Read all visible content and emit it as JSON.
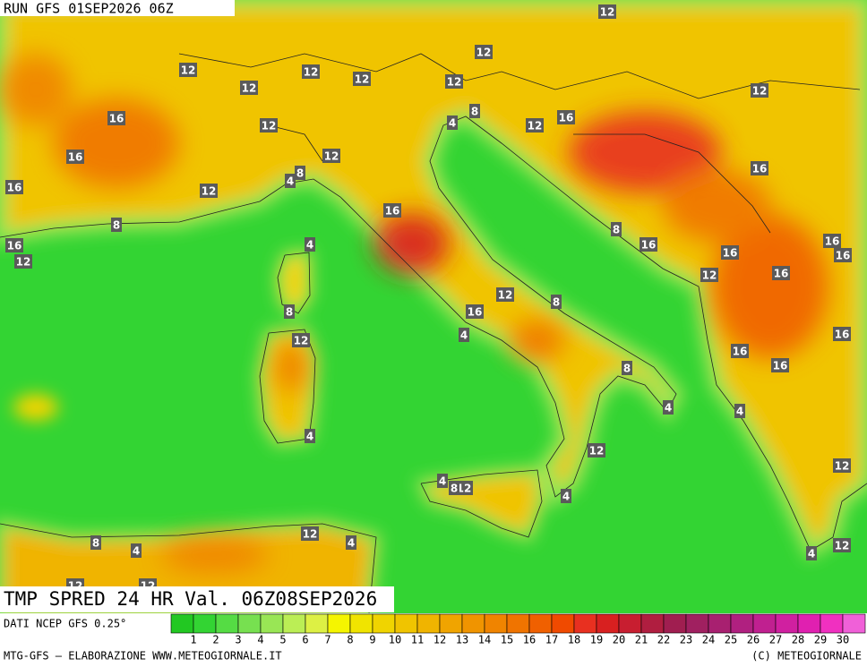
{
  "header": {
    "run": "RUN GFS 01SEP2026 06Z"
  },
  "title": "TMP SPRED 24 HR Val. 06Z08SEP2026",
  "source": "DATI NCEP GFS 0.25°",
  "footer": {
    "left": "MTG-GFS — ELABORAZIONE WWW.METEOGIORNALE.IT",
    "right": "(C) METEOGIORNALE"
  },
  "legend": {
    "levels": [
      1,
      2,
      3,
      4,
      5,
      6,
      7,
      8,
      9,
      10,
      11,
      12,
      13,
      14,
      15,
      16,
      17,
      18,
      19,
      20,
      21,
      22,
      23,
      24,
      25,
      26,
      27,
      28,
      29,
      30
    ],
    "colors": [
      "#22c822",
      "#33d433",
      "#55dc44",
      "#77e050",
      "#99e655",
      "#bbee55",
      "#ddf044",
      "#f5f500",
      "#f0e400",
      "#f0d400",
      "#f0c400",
      "#f0b400",
      "#f0a400",
      "#f09400",
      "#f08400",
      "#f07400",
      "#f06000",
      "#f04a00",
      "#e83020",
      "#d82020",
      "#c81e30",
      "#b01e40",
      "#a01e50",
      "#a02060",
      "#a82070",
      "#b02080",
      "#c02090",
      "#d020a0",
      "#e020b0",
      "#f030c0",
      "#f060d8"
    ]
  },
  "contour_labels": [
    12,
    12,
    12,
    12,
    12,
    12,
    12,
    12,
    16,
    16,
    8,
    12,
    4,
    12,
    16,
    12,
    16,
    8,
    4,
    12,
    16,
    16,
    8,
    8,
    16,
    16,
    16,
    4,
    12,
    16,
    16,
    16,
    12,
    12,
    8,
    16,
    8,
    12,
    4,
    16,
    16,
    16,
    8,
    4,
    4,
    4,
    12,
    12,
    4,
    12,
    8,
    4,
    12,
    4,
    8,
    4,
    12,
    4,
    12,
    12
  ]
}
